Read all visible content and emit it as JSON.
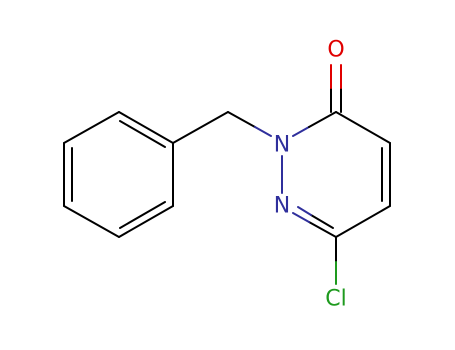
{
  "atoms": [
    {
      "label": "O"
    },
    {
      "label": "N"
    },
    {
      "label": "N"
    },
    {
      "label": "Cl"
    }
  ]
}
